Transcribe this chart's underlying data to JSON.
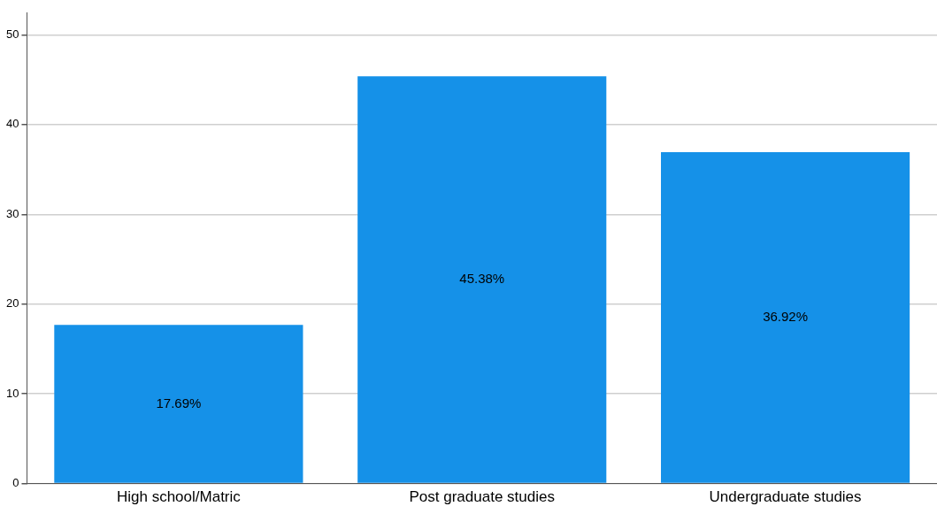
{
  "chart_data": {
    "type": "bar",
    "categories": [
      "High school/Matric",
      "Post graduate studies",
      "Undergraduate studies"
    ],
    "values": [
      17.69,
      45.38,
      36.92
    ],
    "color": "#1591e8",
    "value_labels": [
      "17.69%",
      "45.38%",
      "36.92%"
    ],
    "ylim": [
      0,
      52.5
    ],
    "yticks": [
      0,
      10,
      20,
      30,
      40,
      50
    ],
    "grid": "y",
    "legend": false
  }
}
